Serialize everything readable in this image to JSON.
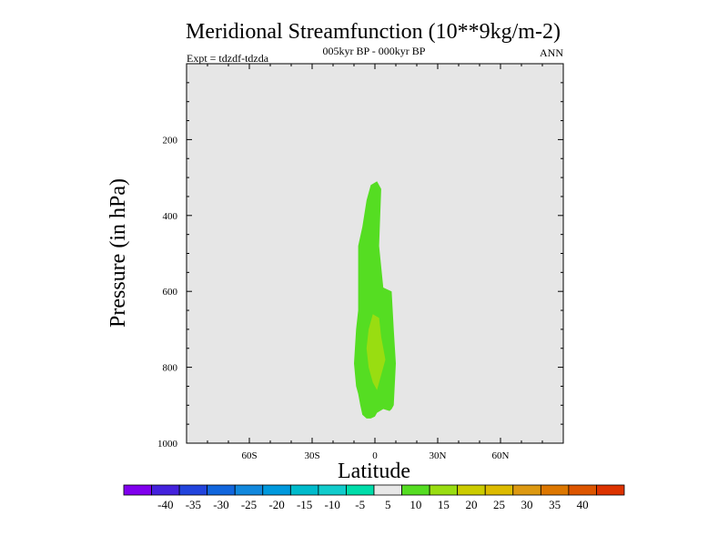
{
  "chart_data": {
    "type": "contour",
    "title": "Meridional Streamfunction (10**9kg/m-2)",
    "subtitle": "005kyr BP - 000kyr BP",
    "left_label": "Expt = tdzdf-tdzda",
    "right_label": "ANN",
    "xlabel": "Latitude",
    "ylabel": "Pressure (in hPa)",
    "xlim": [
      -90,
      90
    ],
    "ylim": [
      1000,
      0
    ],
    "x_ticks": [
      {
        "value": -60,
        "label": "60S"
      },
      {
        "value": -30,
        "label": "30S"
      },
      {
        "value": 0,
        "label": "0"
      },
      {
        "value": 30,
        "label": "30N"
      },
      {
        "value": 60,
        "label": "60N"
      }
    ],
    "y_ticks": [
      {
        "value": 200,
        "label": "200"
      },
      {
        "value": 400,
        "label": "400"
      },
      {
        "value": 600,
        "label": "600"
      },
      {
        "value": 800,
        "label": "800"
      },
      {
        "value": 1000,
        "label": "1000"
      }
    ],
    "background_color": "#e6e6e6",
    "contour_regions": [
      {
        "name": "5-10",
        "color": "#55dd22",
        "polygon": [
          [
            1,
            310
          ],
          [
            3,
            330
          ],
          [
            2,
            480
          ],
          [
            4,
            590
          ],
          [
            8,
            600
          ],
          [
            9,
            700
          ],
          [
            10,
            790
          ],
          [
            9,
            900
          ],
          [
            8,
            910
          ],
          [
            7,
            915
          ],
          [
            4,
            910
          ],
          [
            1,
            920
          ],
          [
            0,
            930
          ],
          [
            -2,
            935
          ],
          [
            -4,
            935
          ],
          [
            -6,
            925
          ],
          [
            -7,
            900
          ],
          [
            -8,
            870
          ],
          [
            -9,
            850
          ],
          [
            -10,
            790
          ],
          [
            -9,
            700
          ],
          [
            -8,
            650
          ],
          [
            -8,
            580
          ],
          [
            -8,
            480
          ],
          [
            -6,
            430
          ],
          [
            -4,
            360
          ],
          [
            -2,
            320
          ]
        ]
      },
      {
        "name": "10-15",
        "color": "#99dd11",
        "polygon": [
          [
            -1,
            660
          ],
          [
            2,
            670
          ],
          [
            3,
            720
          ],
          [
            5,
            780
          ],
          [
            3,
            820
          ],
          [
            1,
            860
          ],
          [
            -1,
            840
          ],
          [
            -3,
            800
          ],
          [
            -4,
            750
          ],
          [
            -3,
            700
          ]
        ]
      }
    ],
    "colorbar": {
      "colors": [
        "#8000ee",
        "#4422dd",
        "#2244dd",
        "#1166dd",
        "#1188dd",
        "#0099dd",
        "#00bbcc",
        "#11cccc",
        "#00ddaa",
        "#e8e8e8",
        "#55dd22",
        "#99dd11",
        "#cccc00",
        "#ddbb00",
        "#dd9911",
        "#dd7700",
        "#dd5500",
        "#dd3300"
      ],
      "labels": [
        "-40",
        "-35",
        "-30",
        "-25",
        "-20",
        "-15",
        "-10",
        "-5",
        "5",
        "10",
        "15",
        "20",
        "25",
        "30",
        "35",
        "40"
      ]
    }
  }
}
